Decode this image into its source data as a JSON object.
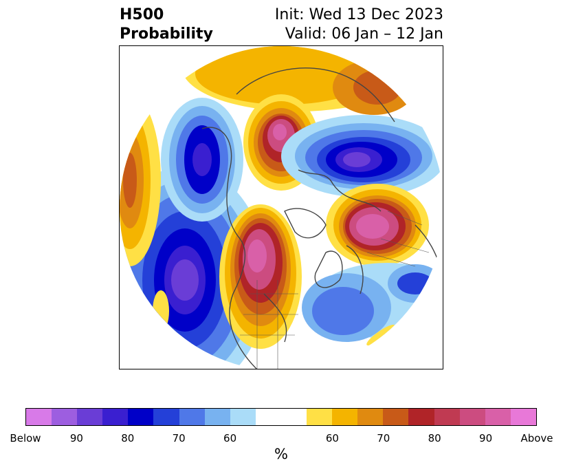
{
  "title": {
    "line1": "H500",
    "line2": "Probability",
    "init": "Init: Wed 13 Dec 2023",
    "valid": "Valid: 06 Jan – 12 Jan"
  },
  "colorbar": {
    "unit": "%",
    "tick_labels": [
      "Below",
      "90",
      "80",
      "70",
      "60",
      "60",
      "70",
      "80",
      "90",
      "Above"
    ],
    "below_colors": [
      "#d87ae8",
      "#9d5ee0",
      "#6a3dd6",
      "#3a1fd0",
      "#0000c8",
      "#2440d8",
      "#4f78e8",
      "#78b2f0",
      "#aadcf8"
    ],
    "neutral_color": "#ffffff",
    "above_colors": [
      "#ffe045",
      "#f4b400",
      "#e08a10",
      "#c85a18",
      "#b02428",
      "#c03a52",
      "#cc4c80",
      "#d960a8",
      "#e878d8"
    ]
  },
  "map": {
    "projection": "north-polar-stereographic",
    "field": "500 hPa height probability anomaly"
  }
}
